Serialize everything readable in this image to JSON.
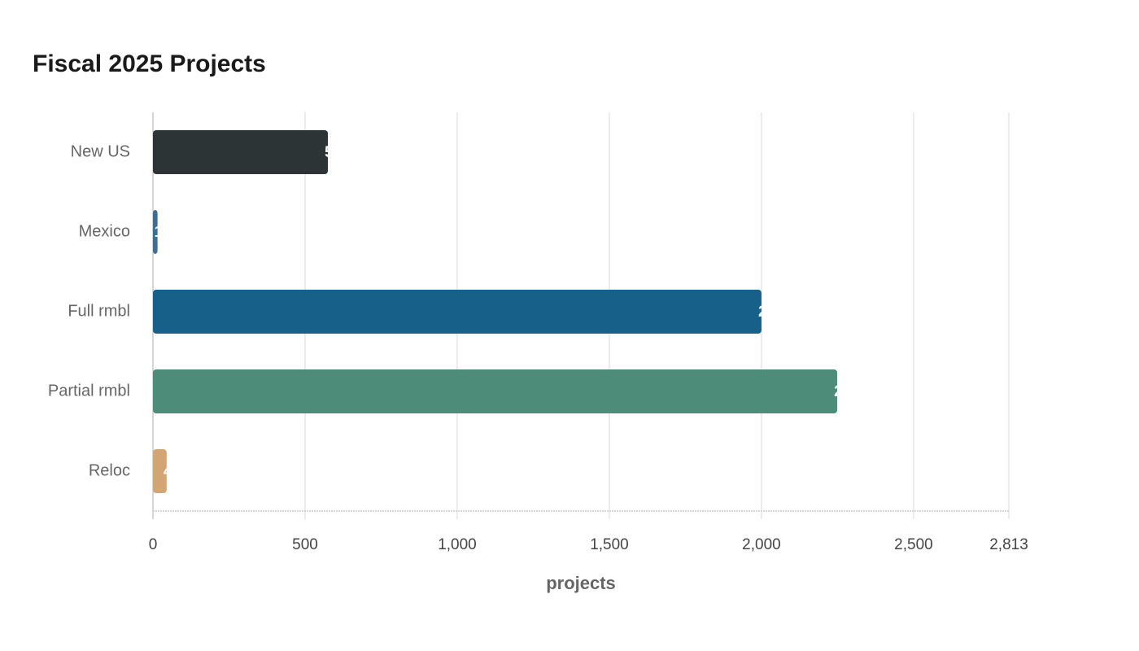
{
  "chart_data": {
    "type": "bar",
    "orientation": "horizontal",
    "title": "Fiscal 2025 Projects",
    "x_label": "projects",
    "categories": [
      "New US",
      "Mexico",
      "Full rmbl",
      "Partial rmbl",
      "Reloc"
    ],
    "values": [
      575,
      15,
      2000,
      2249,
      45
    ],
    "colors": [
      "#2d3436",
      "#3d6f94",
      "#17608a",
      "#4e8c7a",
      "#d4a574"
    ],
    "xlim": [
      0,
      2813
    ],
    "xticks": [
      0,
      500,
      {
        "value": 1000,
        "label": "1,000"
      },
      {
        "value": 1500,
        "label": "1,500"
      },
      {
        "value": 2000,
        "label": "2,000"
      },
      {
        "value": 2500,
        "label": "2,500"
      },
      {
        "value": 2813,
        "label": "2,813"
      }
    ],
    "grid": true
  }
}
